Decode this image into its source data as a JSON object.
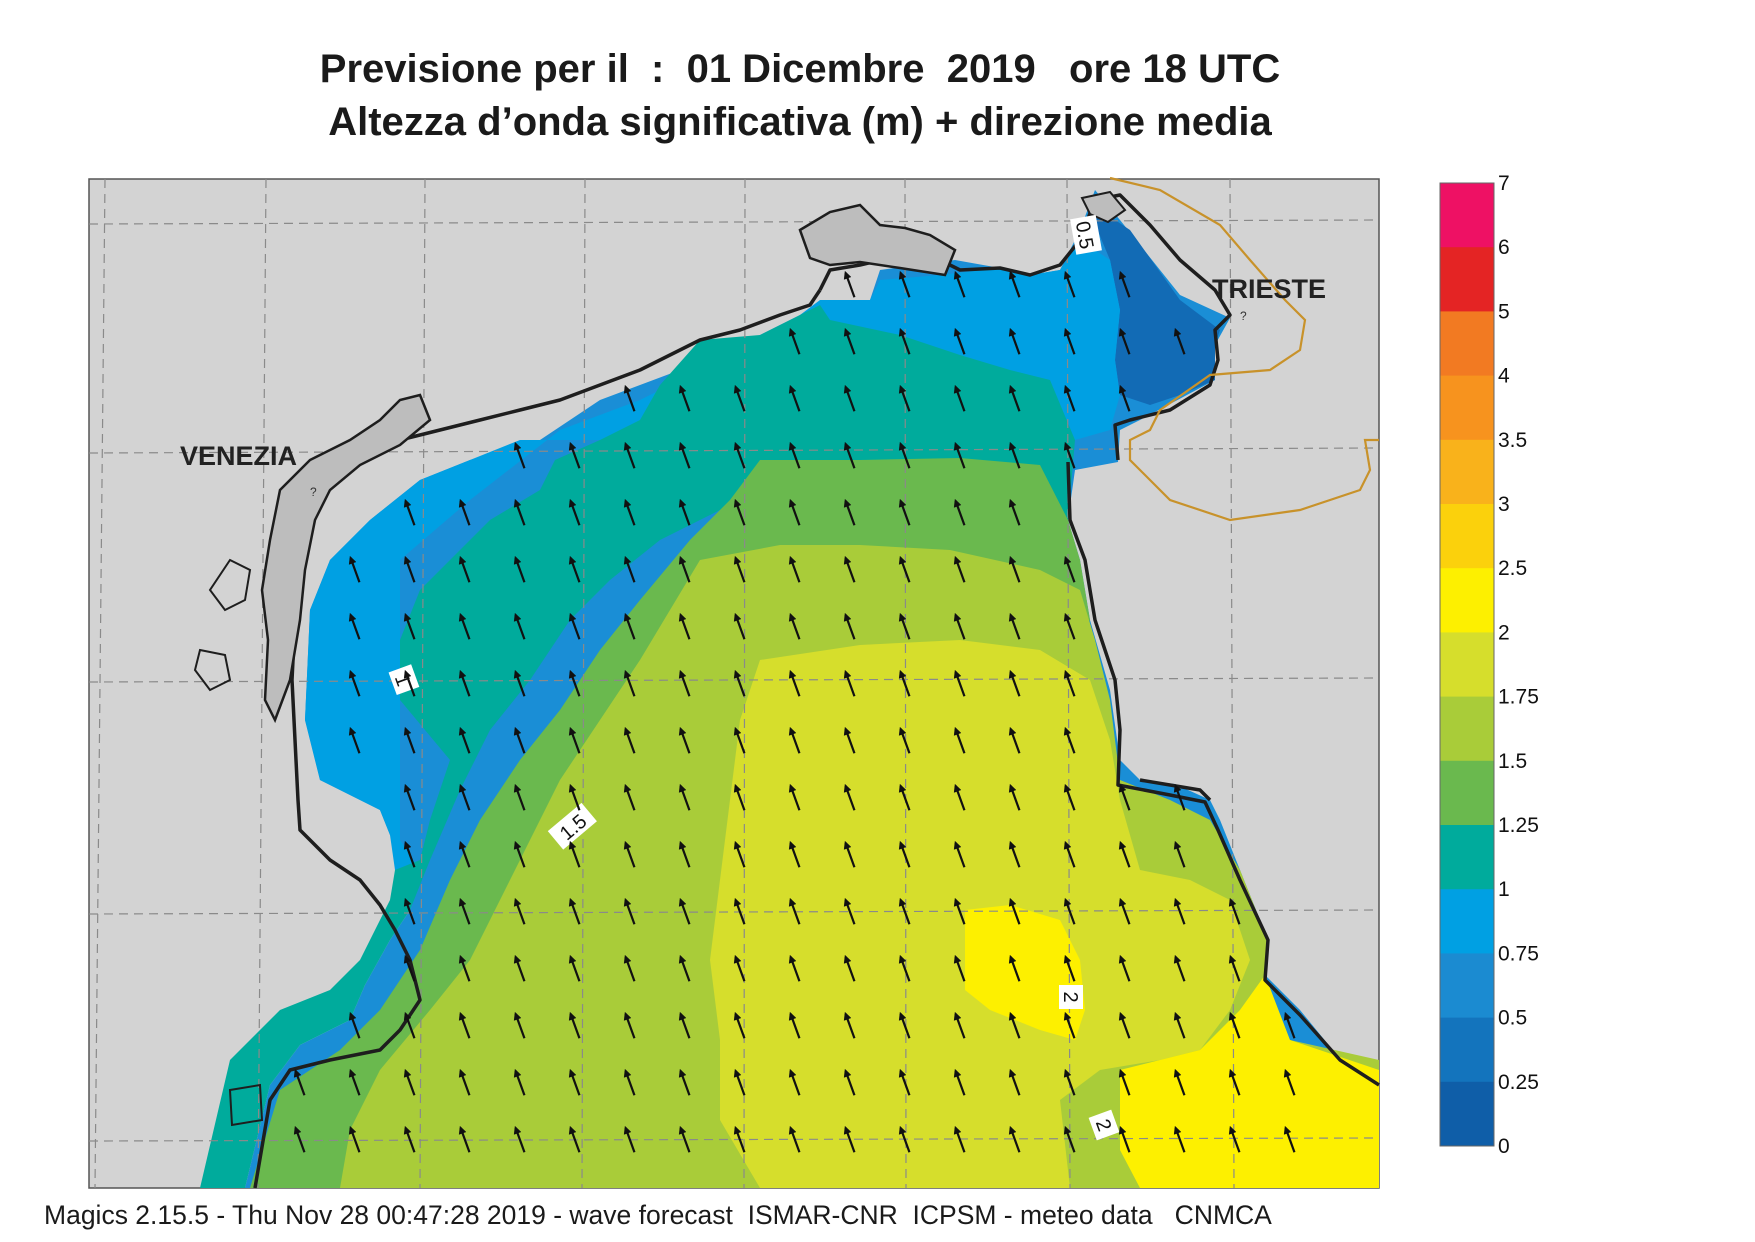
{
  "title_line1": "Previsione per il  :  01 Dicembre  2019   ore 18 UTC",
  "title_line2": "Altezza d’onda significativa (m) + direzione media",
  "footer": "Magics 2.15.5 - Thu Nov 28 00:47:28 2019 - wave forecast  ISMAR-CNR  ICPSM - meteo data   CNMCA",
  "cities": [
    {
      "name": "VENEZIA"
    },
    {
      "name": "TRIESTE"
    }
  ],
  "contour_labels": [
    "0.5",
    "1",
    "1.5",
    "2",
    "2"
  ],
  "legend": {
    "labels": [
      "7",
      "6",
      "5",
      "4",
      "3.5",
      "3",
      "2.5",
      "2",
      "1.75",
      "1.5",
      "1.25",
      "1",
      "0.75",
      "0.5",
      "0.25",
      "0"
    ],
    "colors": [
      "#ee1164",
      "#e42424",
      "#f27a22",
      "#f7931e",
      "#f9b21b",
      "#fbd10c",
      "#fdf000",
      "#d6de2c",
      "#a9cc39",
      "#6ab94e",
      "#00ab9c",
      "#00a0e3",
      "#1b8bd1",
      "#1374bd",
      "#0f5ea8"
    ]
  },
  "arrow_direction_deg": 340
}
